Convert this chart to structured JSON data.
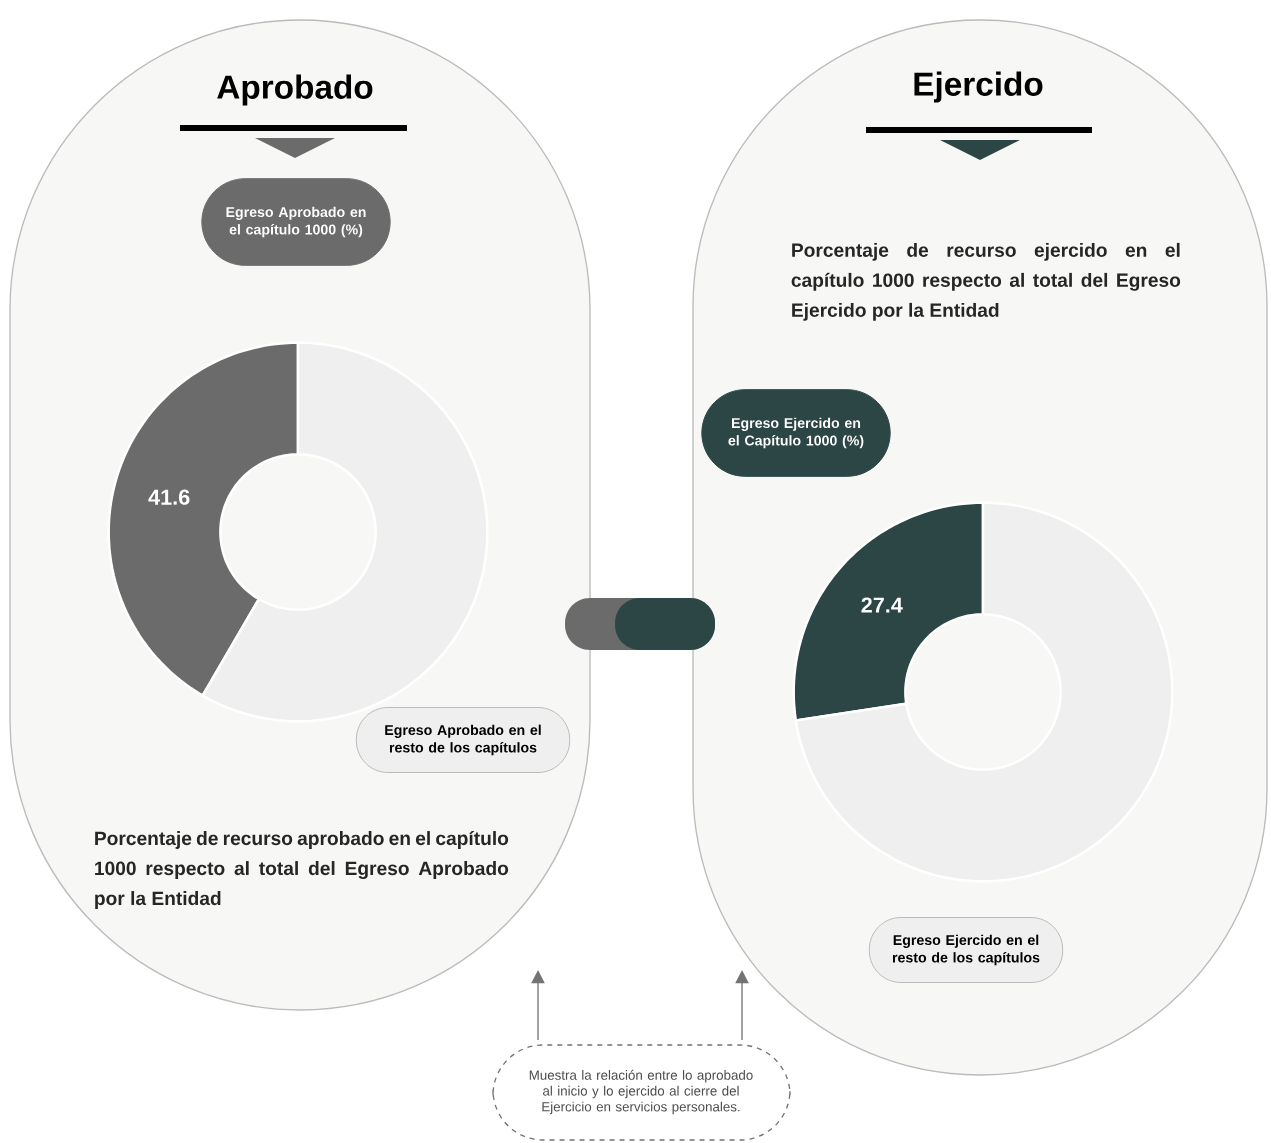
{
  "chart_data": [
    {
      "type": "donut",
      "title": "Aprobado",
      "categories": [
        "Egreso Aprobado en el capítulo 1000 (%)",
        "Egreso Aprobado en el resto de los capítulos"
      ],
      "values": [
        41.6,
        58.4
      ],
      "colors": [
        "#6b6b6b",
        "#efefef"
      ],
      "value_labels": [
        "41.6",
        null
      ],
      "annotations": [
        "Porcentaje de recurso aprobado en el capítulo 1000 respecto al total del Egreso Aprobado por la Entidad"
      ]
    },
    {
      "type": "donut",
      "title": "Ejercido",
      "categories": [
        "Egreso Ejercido en el Capítulo 1000 (%)",
        "Egreso Ejercido en el resto de los capítulos"
      ],
      "values": [
        27.4,
        72.6
      ],
      "colors": [
        "#2c4545",
        "#efefef"
      ],
      "value_labels": [
        "27.4",
        null
      ],
      "annotations": [
        "Porcentaje de recurso ejercido en el capítulo 1000 respecto al total del Egreso Ejercido por la Entidad",
        "Muestra la relación entre lo aprobado al inicio y lo ejercido al cierre del Ejercicio en servicios personales."
      ]
    }
  ]
}
